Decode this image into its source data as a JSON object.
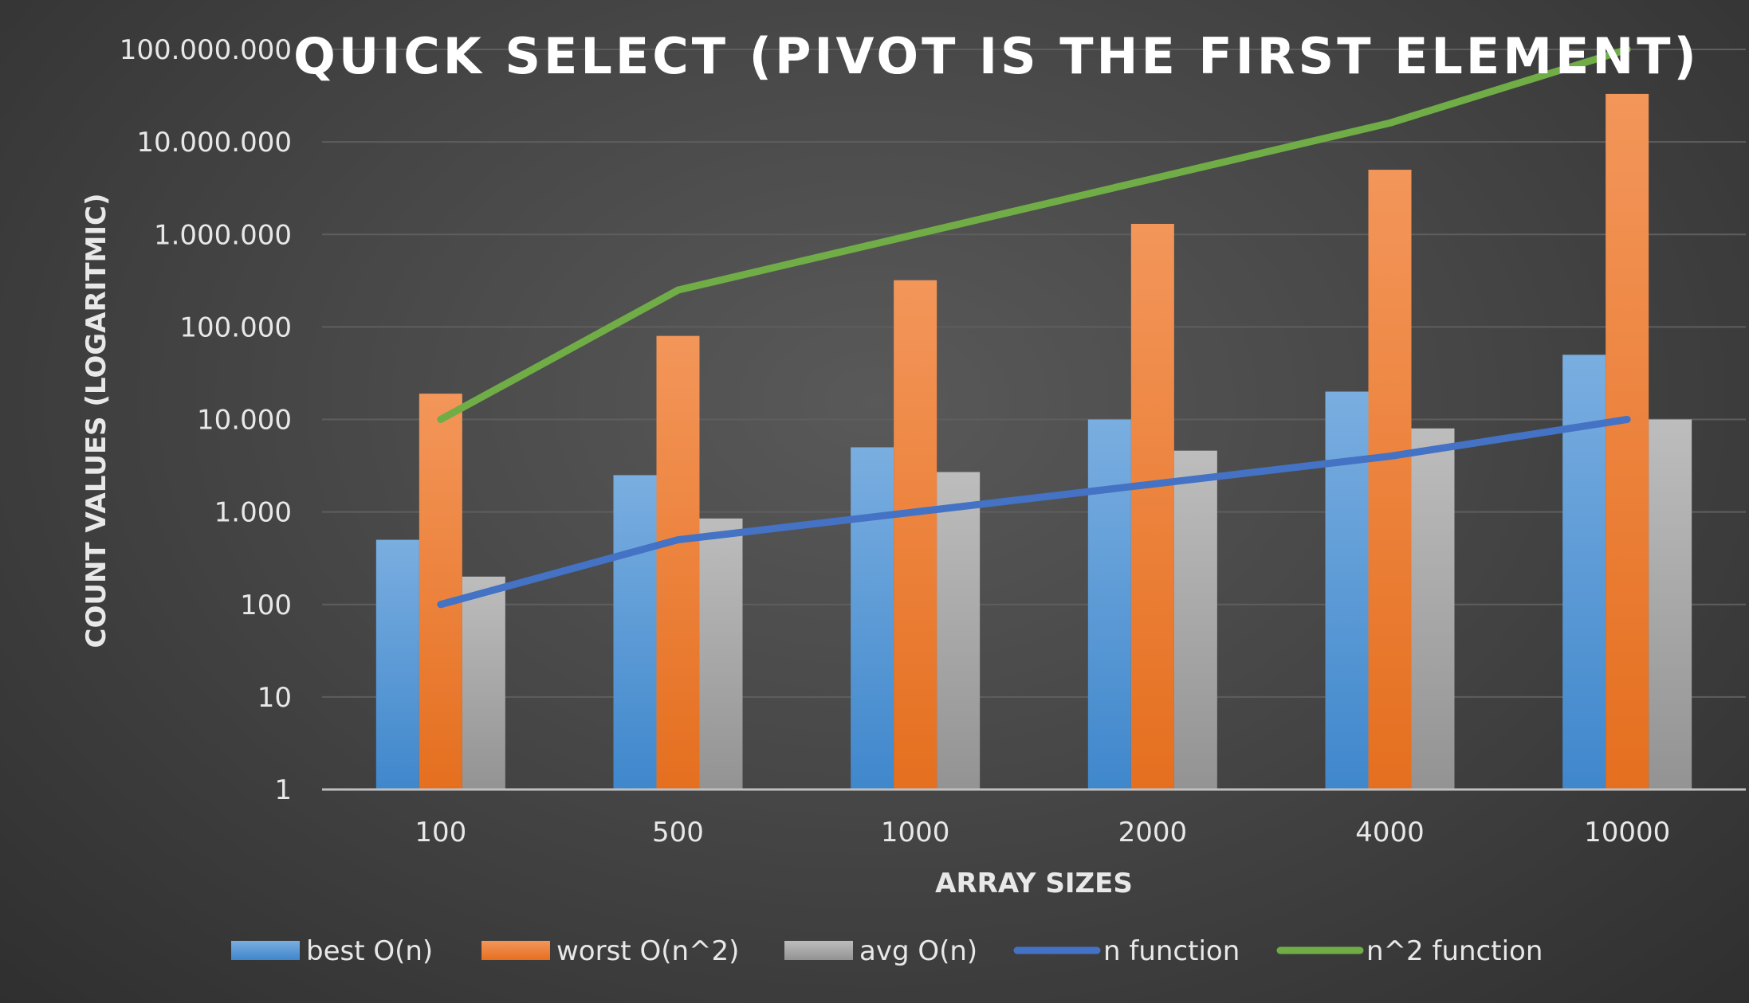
{
  "chart_data": {
    "type": "bar",
    "title": "QUICK SELECT (PIVOT IS THE FIRST ELEMENT)",
    "xlabel": "ARRAY SIZES",
    "ylabel": "COUNT VALUES (LOGARITMIC)",
    "yscale": "log",
    "ylim": [
      1,
      100000000
    ],
    "yticks": [
      1,
      10,
      100,
      1000,
      10000,
      100000,
      1000000,
      10000000,
      100000000
    ],
    "ytick_labels": [
      "1",
      "10",
      "100",
      "1.000",
      "10.000",
      "100.000",
      "1.000.000",
      "10.000.000",
      "100.000.000"
    ],
    "categories": [
      "100",
      "500",
      "1000",
      "2000",
      "4000",
      "10000"
    ],
    "grid": true,
    "legend_position": "bottom",
    "series": [
      {
        "name": "best O(n)",
        "kind": "bar",
        "color": "#5b9bd5",
        "values": [
          500,
          2500,
          5000,
          10000,
          20000,
          50000
        ]
      },
      {
        "name": "worst O(n^2)",
        "kind": "bar",
        "color": "#ed7d31",
        "values": [
          19000,
          80000,
          320000,
          1300000,
          5000000,
          33000000
        ]
      },
      {
        "name": "avg O(n)",
        "kind": "bar",
        "color": "#a5a5a5",
        "values": [
          200,
          850,
          2700,
          4600,
          8000,
          10000
        ]
      },
      {
        "name": "n function",
        "kind": "line",
        "color": "#4472c4",
        "values": [
          100,
          500,
          1000,
          2000,
          4000,
          10000
        ]
      },
      {
        "name": "n^2 function",
        "kind": "line",
        "color": "#70ad47",
        "values": [
          10000,
          250000,
          1000000,
          4000000,
          16000000,
          100000000
        ]
      }
    ]
  }
}
